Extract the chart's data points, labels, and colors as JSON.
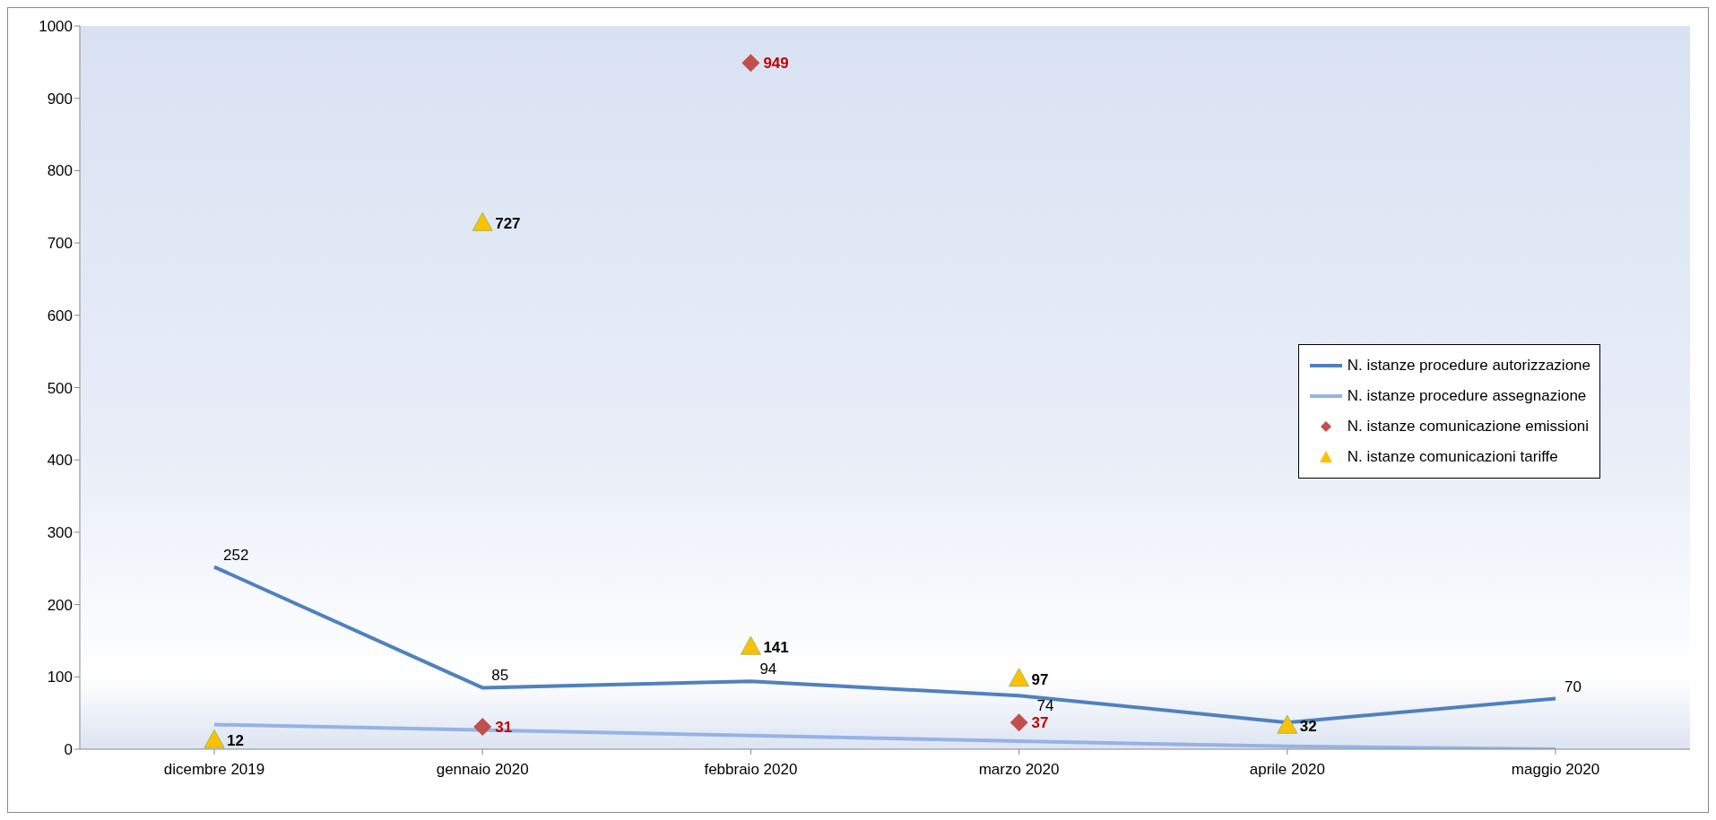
{
  "chart_data": {
    "type": "line",
    "categories": [
      "dicembre 2019",
      "gennaio 2020",
      "febbraio 2020",
      "marzo 2020",
      "aprile 2020",
      "maggio 2020"
    ],
    "ylim": [
      0,
      1000
    ],
    "yticks": [
      0,
      100,
      200,
      300,
      400,
      500,
      600,
      700,
      800,
      900,
      1000
    ],
    "grid": false,
    "legend": "right",
    "series": [
      {
        "name": "N. istanze procedure autorizzazione",
        "color": "#4f81bd",
        "marker": "none",
        "values": [
          252,
          85,
          94,
          74,
          37,
          70
        ],
        "value_labels": [
          "252",
          "85",
          "94",
          "74",
          null,
          "70"
        ]
      },
      {
        "name": "N. istanze procedure assegnazione",
        "color": "#95b3e4",
        "marker": "none",
        "values": [
          34,
          null,
          19,
          11,
          4,
          0
        ]
      },
      {
        "name": "N. istanze comunicazione emissioni",
        "color": "#c0504d",
        "type": "scatter",
        "marker": "diamond",
        "values": [
          null,
          31,
          949,
          37,
          null,
          null
        ],
        "value_labels": [
          null,
          "31",
          "949",
          "37",
          null,
          null
        ]
      },
      {
        "name": "N. istanze comunicazioni tariffe",
        "color": "#ffc000",
        "type": "scatter",
        "marker": "triangle",
        "values": [
          12,
          727,
          141,
          97,
          32,
          null
        ],
        "value_labels": [
          "12",
          "727",
          "141",
          "97",
          "32",
          null
        ]
      }
    ]
  }
}
